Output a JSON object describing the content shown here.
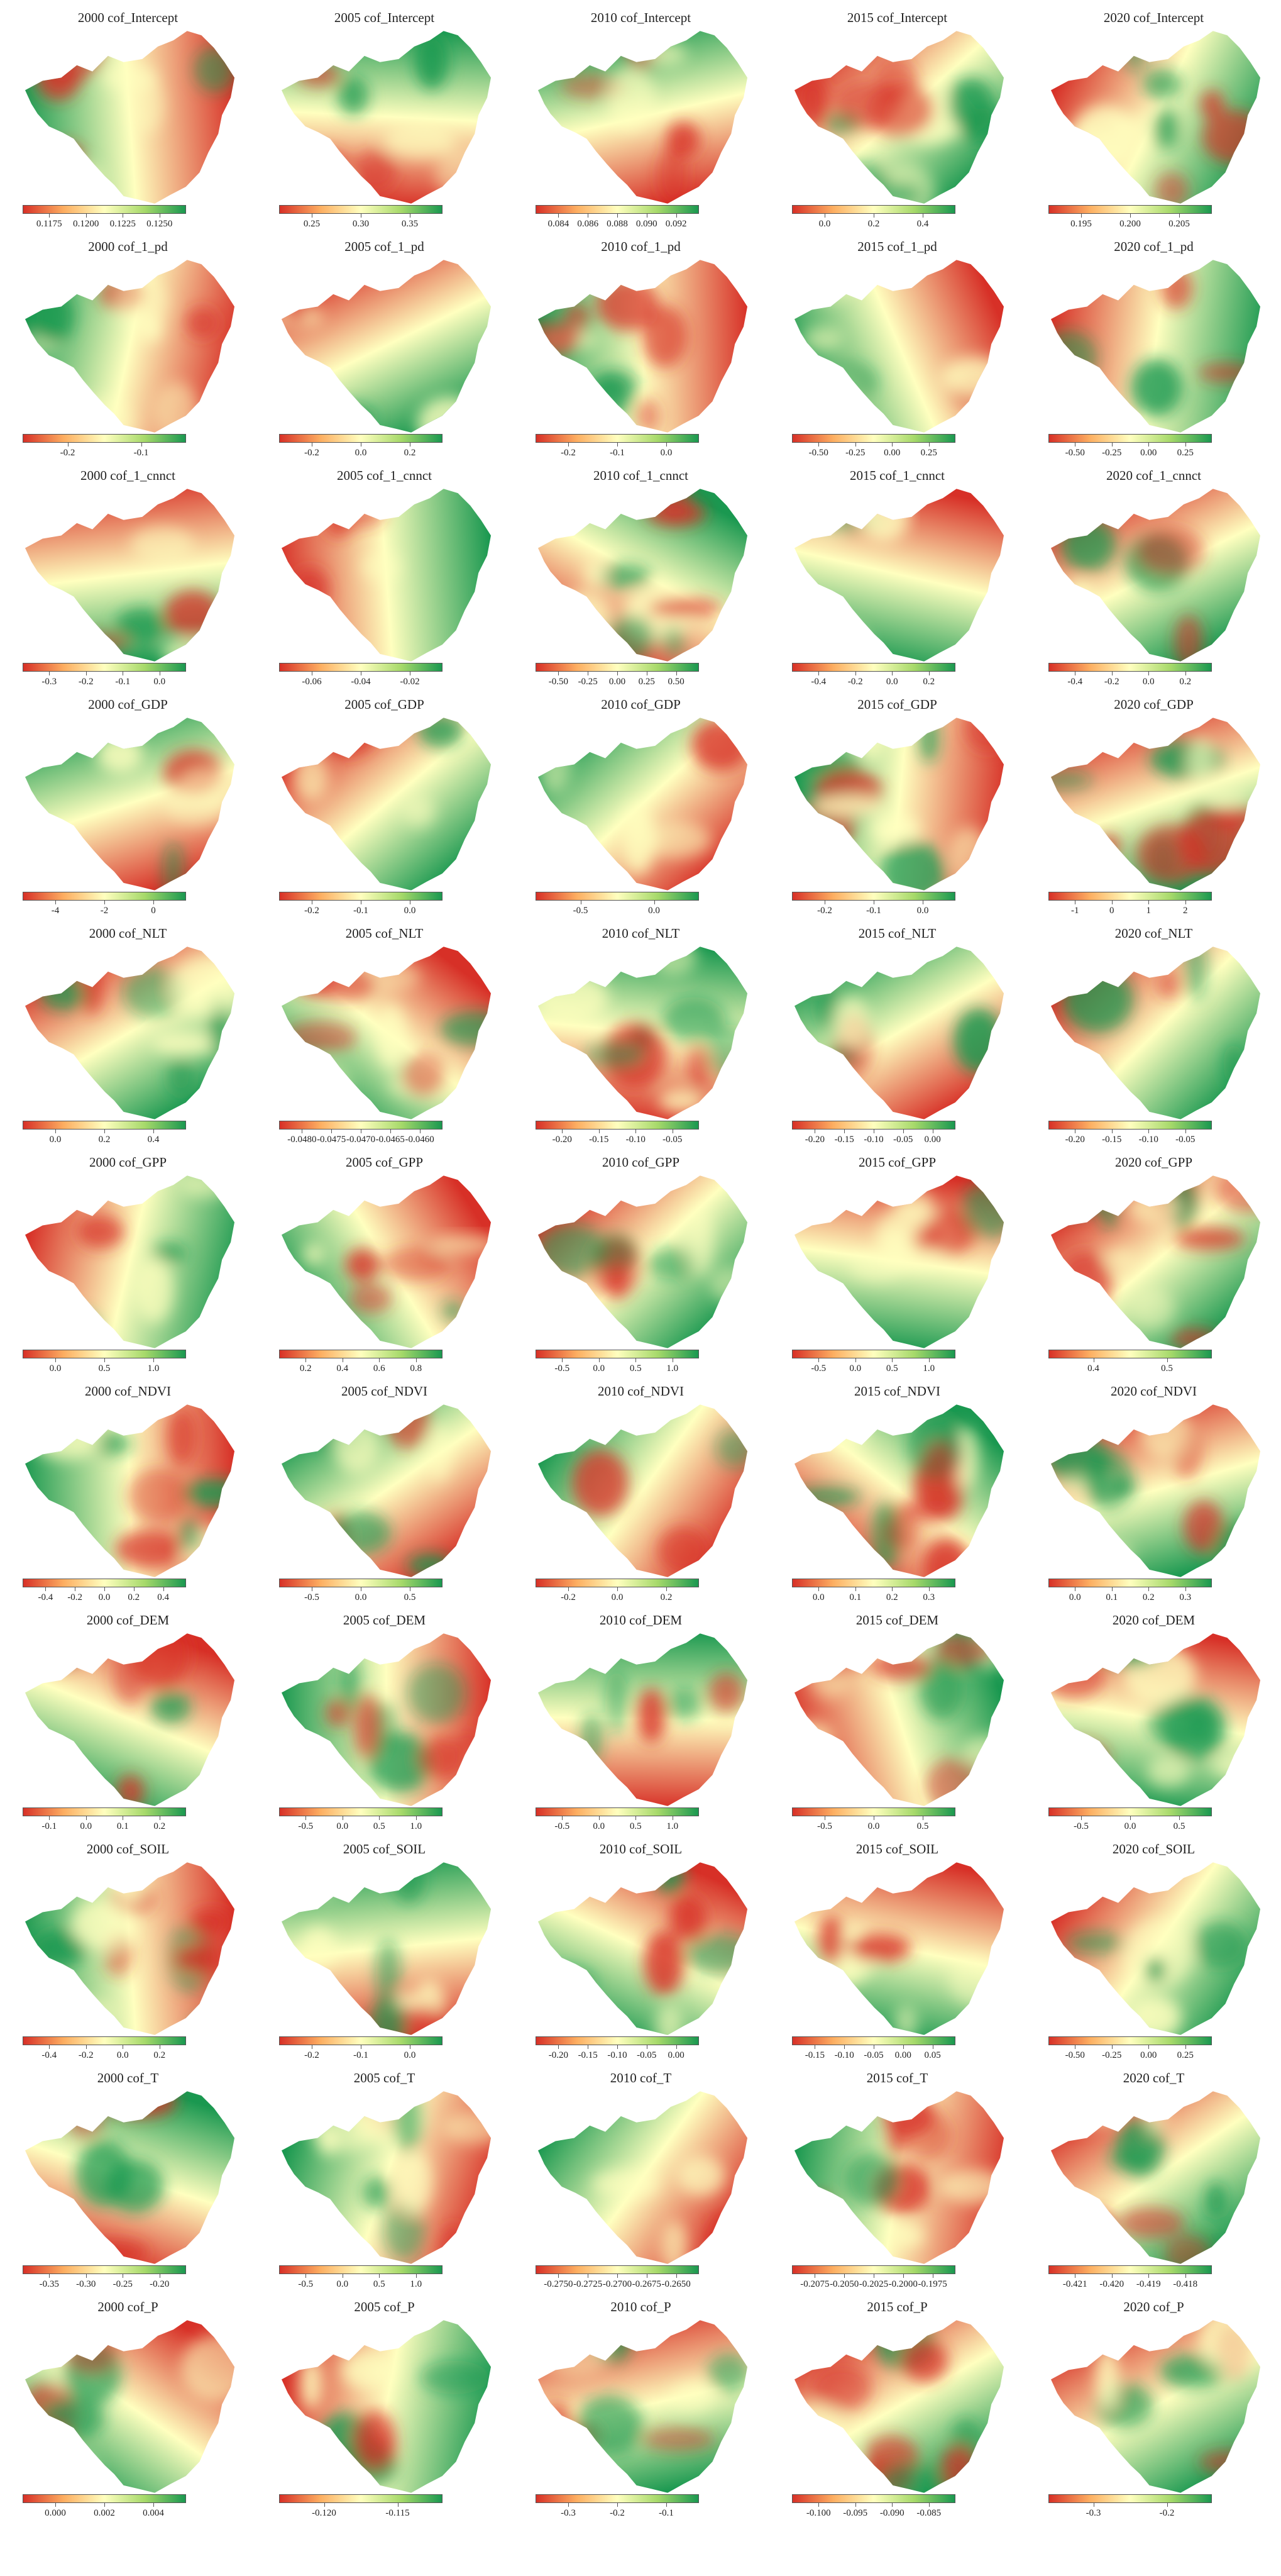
{
  "colormap": {
    "low": "#d73027",
    "mid": "#ffffbf",
    "high": "#1a9850",
    "name": "RdYlGn"
  },
  "rows": [
    {
      "variable": "Intercept",
      "panels": [
        {
          "title": "2000 cof_Intercept",
          "ticks": [
            "0.1175",
            "0.1200",
            "0.1225",
            "0.1250"
          ]
        },
        {
          "title": "2005 cof_Intercept",
          "ticks": [
            "0.25",
            "0.30",
            "0.35"
          ]
        },
        {
          "title": "2010 cof_Intercept",
          "ticks": [
            "0.084",
            "0.086",
            "0.088",
            "0.090",
            "0.092"
          ]
        },
        {
          "title": "2015 cof_Intercept",
          "ticks": [
            "0.0",
            "0.2",
            "0.4"
          ]
        },
        {
          "title": "2020 cof_Intercept",
          "ticks": [
            "0.195",
            "0.200",
            "0.205"
          ]
        }
      ]
    },
    {
      "variable": "1_pd",
      "panels": [
        {
          "title": "2000 cof_1_pd",
          "ticks": [
            "-0.2",
            "-0.1"
          ]
        },
        {
          "title": "2005 cof_1_pd",
          "ticks": [
            "-0.2",
            "0.0",
            "0.2"
          ]
        },
        {
          "title": "2010 cof_1_pd",
          "ticks": [
            "-0.2",
            "-0.1",
            "0.0"
          ]
        },
        {
          "title": "2015 cof_1_pd",
          "ticks": [
            "-0.50",
            "-0.25",
            "0.00",
            "0.25"
          ]
        },
        {
          "title": "2020 cof_1_pd",
          "ticks": [
            "-0.50",
            "-0.25",
            "0.00",
            "0.25"
          ]
        }
      ]
    },
    {
      "variable": "1_cnnct",
      "panels": [
        {
          "title": "2000 cof_1_cnnct",
          "ticks": [
            "-0.3",
            "-0.2",
            "-0.1",
            "0.0"
          ]
        },
        {
          "title": "2005 cof_1_cnnct",
          "ticks": [
            "-0.06",
            "-0.04",
            "-0.02"
          ]
        },
        {
          "title": "2010 cof_1_cnnct",
          "ticks": [
            "-0.50",
            "-0.25",
            "0.00",
            "0.25",
            "0.50"
          ]
        },
        {
          "title": "2015 cof_1_cnnct",
          "ticks": [
            "-0.4",
            "-0.2",
            "0.0",
            "0.2"
          ]
        },
        {
          "title": "2020 cof_1_cnnct",
          "ticks": [
            "-0.4",
            "-0.2",
            "0.0",
            "0.2"
          ]
        }
      ]
    },
    {
      "variable": "GDP",
      "panels": [
        {
          "title": "2000 cof_GDP",
          "ticks": [
            "-4",
            "-2",
            "0"
          ]
        },
        {
          "title": "2005 cof_GDP",
          "ticks": [
            "-0.2",
            "-0.1",
            "0.0"
          ]
        },
        {
          "title": "2010 cof_GDP",
          "ticks": [
            "-0.5",
            "0.0"
          ]
        },
        {
          "title": "2015 cof_GDP",
          "ticks": [
            "-0.2",
            "-0.1",
            "0.0"
          ]
        },
        {
          "title": "2020 cof_GDP",
          "ticks": [
            "-1",
            "0",
            "1",
            "2"
          ]
        }
      ]
    },
    {
      "variable": "NLT",
      "panels": [
        {
          "title": "2000 cof_NLT",
          "ticks": [
            "0.0",
            "0.2",
            "0.4"
          ]
        },
        {
          "title": "2005 cof_NLT",
          "ticks": [
            "-0.0480",
            "-0.0475",
            "-0.0470",
            "-0.0465",
            "-0.0460"
          ]
        },
        {
          "title": "2010 cof_NLT",
          "ticks": [
            "-0.20",
            "-0.15",
            "-0.10",
            "-0.05"
          ]
        },
        {
          "title": "2015 cof_NLT",
          "ticks": [
            "-0.20",
            "-0.15",
            "-0.10",
            "-0.05",
            "0.00"
          ]
        },
        {
          "title": "2020 cof_NLT",
          "ticks": [
            "-0.20",
            "-0.15",
            "-0.10",
            "-0.05"
          ]
        }
      ]
    },
    {
      "variable": "GPP",
      "panels": [
        {
          "title": "2000 cof_GPP",
          "ticks": [
            "0.0",
            "0.5",
            "1.0"
          ]
        },
        {
          "title": "2005 cof_GPP",
          "ticks": [
            "0.2",
            "0.4",
            "0.6",
            "0.8"
          ]
        },
        {
          "title": "2010 cof_GPP",
          "ticks": [
            "-0.5",
            "0.0",
            "0.5",
            "1.0"
          ]
        },
        {
          "title": "2015 cof_GPP",
          "ticks": [
            "-0.5",
            "0.0",
            "0.5",
            "1.0"
          ]
        },
        {
          "title": "2020 cof_GPP",
          "ticks": [
            "0.4",
            "0.5"
          ]
        }
      ]
    },
    {
      "variable": "NDVI",
      "panels": [
        {
          "title": "2000 cof_NDVI",
          "ticks": [
            "-0.4",
            "-0.2",
            "0.0",
            "0.2",
            "0.4"
          ]
        },
        {
          "title": "2005 cof_NDVI",
          "ticks": [
            "-0.5",
            "0.0",
            "0.5"
          ]
        },
        {
          "title": "2010 cof_NDVI",
          "ticks": [
            "-0.2",
            "0.0",
            "0.2"
          ]
        },
        {
          "title": "2015 cof_NDVI",
          "ticks": [
            "0.0",
            "0.1",
            "0.2",
            "0.3"
          ]
        },
        {
          "title": "2020 cof_NDVI",
          "ticks": [
            "0.0",
            "0.1",
            "0.2",
            "0.3"
          ]
        }
      ]
    },
    {
      "variable": "DEM",
      "panels": [
        {
          "title": "2000 cof_DEM",
          "ticks": [
            "-0.1",
            "0.0",
            "0.1",
            "0.2"
          ]
        },
        {
          "title": "2005 cof_DEM",
          "ticks": [
            "-0.5",
            "0.0",
            "0.5",
            "1.0"
          ]
        },
        {
          "title": "2010 cof_DEM",
          "ticks": [
            "-0.5",
            "0.0",
            "0.5",
            "1.0"
          ]
        },
        {
          "title": "2015 cof_DEM",
          "ticks": [
            "-0.5",
            "0.0",
            "0.5"
          ]
        },
        {
          "title": "2020 cof_DEM",
          "ticks": [
            "-0.5",
            "0.0",
            "0.5"
          ]
        }
      ]
    },
    {
      "variable": "SOIL",
      "panels": [
        {
          "title": "2000 cof_SOIL",
          "ticks": [
            "-0.4",
            "-0.2",
            "0.0",
            "0.2"
          ]
        },
        {
          "title": "2005 cof_SOIL",
          "ticks": [
            "-0.2",
            "-0.1",
            "0.0"
          ]
        },
        {
          "title": "2010 cof_SOIL",
          "ticks": [
            "-0.20",
            "-0.15",
            "-0.10",
            "-0.05",
            "0.00"
          ]
        },
        {
          "title": "2015 cof_SOIL",
          "ticks": [
            "-0.15",
            "-0.10",
            "-0.05",
            "0.00",
            "0.05"
          ]
        },
        {
          "title": "2020 cof_SOIL",
          "ticks": [
            "-0.50",
            "-0.25",
            "0.00",
            "0.25"
          ]
        }
      ]
    },
    {
      "variable": "T",
      "panels": [
        {
          "title": "2000 cof_T",
          "ticks": [
            "-0.35",
            "-0.30",
            "-0.25",
            "-0.20"
          ]
        },
        {
          "title": "2005 cof_T",
          "ticks": [
            "-0.5",
            "0.0",
            "0.5",
            "1.0"
          ]
        },
        {
          "title": "2010 cof_T",
          "ticks": [
            "-0.2750",
            "-0.2725",
            "-0.2700",
            "-0.2675",
            "-0.2650"
          ]
        },
        {
          "title": "2015 cof_T",
          "ticks": [
            "-0.2075",
            "-0.2050",
            "-0.2025",
            "-0.2000",
            "-0.1975"
          ]
        },
        {
          "title": "2020 cof_T",
          "ticks": [
            "-0.421",
            "-0.420",
            "-0.419",
            "-0.418"
          ]
        }
      ]
    },
    {
      "variable": "P",
      "panels": [
        {
          "title": "2000 cof_P",
          "ticks": [
            "0.000",
            "0.002",
            "0.004"
          ]
        },
        {
          "title": "2005 cof_P",
          "ticks": [
            "-0.120",
            "-0.115"
          ]
        },
        {
          "title": "2010 cof_P",
          "ticks": [
            "-0.3",
            "-0.2",
            "-0.1"
          ]
        },
        {
          "title": "2015 cof_P",
          "ticks": [
            "-0.100",
            "-0.095",
            "-0.090",
            "-0.085"
          ]
        },
        {
          "title": "2020 cof_P",
          "ticks": [
            "-0.3",
            "-0.2"
          ]
        }
      ]
    }
  ]
}
